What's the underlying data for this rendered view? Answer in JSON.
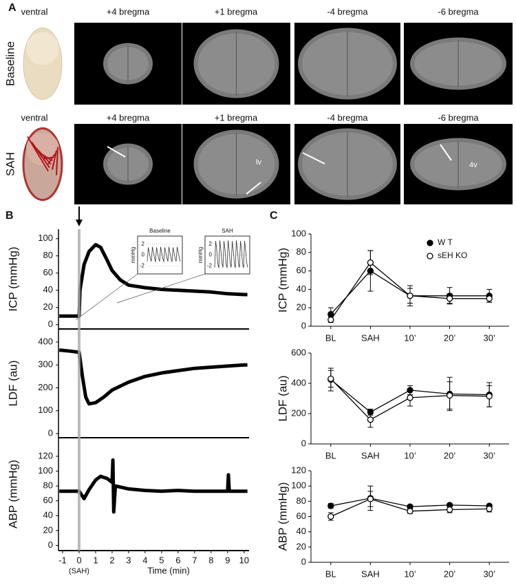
{
  "figure": {
    "panel_a": {
      "label": "A",
      "rows": [
        {
          "label": "Baseline",
          "columns": [
            "ventral",
            "+4 bregma",
            "+1 bregma",
            "-4 bregma",
            "-6 bregma"
          ]
        },
        {
          "label": "SAH",
          "columns": [
            "ventral",
            "+4 bregma",
            "+1 bregma",
            "-4 bregma",
            "-6 bregma"
          ]
        }
      ],
      "annotations": [
        "lv",
        "4v"
      ]
    },
    "panel_b_label": "B",
    "panel_c_label": "C"
  },
  "chart_data": [
    {
      "type": "trace",
      "ylabel": "ICP (mmHg)",
      "color": "#000000",
      "x": [
        -1.2,
        -0.5,
        0,
        0.05,
        0.3,
        0.6,
        1,
        1.3,
        1.7,
        2,
        2.5,
        3,
        4,
        5,
        6,
        7,
        8,
        9,
        10,
        10.2
      ],
      "values": [
        10,
        10,
        10,
        40,
        70,
        85,
        93,
        90,
        75,
        63,
        52,
        46,
        43,
        41,
        40,
        39,
        38,
        36,
        35,
        35
      ],
      "xlim": [
        -1.25,
        10.3
      ],
      "ylim": [
        -5,
        111
      ],
      "yticks": [
        0,
        20,
        40,
        60,
        80,
        100
      ]
    },
    {
      "type": "trace",
      "ylabel": "LDF (au)",
      "color": "#000000",
      "x": [
        -1.2,
        -0.5,
        0,
        0.2,
        0.4,
        0.6,
        1,
        1.5,
        2,
        3,
        4,
        5,
        6,
        7,
        8,
        9,
        10,
        10.2
      ],
      "values": [
        365,
        360,
        355,
        250,
        160,
        130,
        135,
        160,
        190,
        225,
        250,
        265,
        275,
        285,
        290,
        295,
        300,
        300
      ],
      "xlim": [
        -1.25,
        10.3
      ],
      "ylim": [
        -18,
        457
      ],
      "yticks": [
        0,
        100,
        200,
        300,
        400
      ]
    },
    {
      "type": "trace",
      "ylabel": "ABP (mmHg)",
      "color": "#000000",
      "x": [
        -1.2,
        -0.5,
        0,
        0.3,
        0.6,
        1,
        1.3,
        1.7,
        2,
        2.05,
        2.1,
        2.2,
        3,
        4,
        5,
        6,
        7,
        8,
        9,
        9.05,
        9.1,
        10,
        10.2
      ],
      "values": [
        73,
        73,
        73,
        63,
        75,
        88,
        93,
        90,
        85,
        115,
        45,
        80,
        76,
        74,
        73,
        74,
        73,
        73,
        73,
        95,
        73,
        73,
        73
      ],
      "xlim": [
        -1.25,
        10.3
      ],
      "ylim": [
        -7,
        145
      ],
      "yticks": [
        0,
        20,
        40,
        60,
        80,
        100,
        120
      ],
      "xticks": [
        -1,
        0,
        1,
        2,
        3,
        4,
        5,
        6,
        7,
        8,
        9,
        10
      ],
      "xlabel": "Time (min)",
      "x_annotation": "(SAH)"
    },
    {
      "type": "inset",
      "title": "Baseline",
      "ylabel": "mmHg",
      "color": "#333333",
      "ylim": [
        -3.5,
        3.5
      ],
      "yticks": [
        2,
        0,
        -2
      ],
      "values": [
        -1.2,
        1.4,
        0.4,
        -0.6,
        -1.2,
        1.5,
        0.5,
        -0.5,
        -1.3,
        1.4,
        0.4,
        -0.6,
        -1.2,
        1.5,
        0.4,
        -0.6,
        -1.3,
        1.4,
        0.5,
        -0.5,
        -1.2,
        1.5,
        0.4,
        -0.6,
        -1.3,
        1.4,
        0.4,
        -0.6,
        -1.2,
        1.5,
        0.5,
        -0.5,
        -1.2
      ]
    },
    {
      "type": "inset",
      "title": "SAH",
      "ylabel": "mmHg",
      "color": "#333333",
      "ylim": [
        -3.5,
        3.5
      ],
      "yticks": [
        2,
        0,
        -2
      ],
      "values": [
        -2.3,
        2.6,
        1.0,
        -1.5,
        -2.4,
        2.7,
        0.9,
        -1.4,
        -2.3,
        2.6,
        1.0,
        -1.5,
        -2.4,
        2.7,
        1.0,
        -1.5,
        -2.3,
        2.6,
        0.9,
        -1.4,
        -2.4,
        2.7,
        1.0,
        -1.5,
        -2.3,
        2.6,
        1.0,
        -1.5,
        -2.4,
        2.6,
        0.9,
        -1.4,
        -2.3
      ]
    },
    {
      "type": "errorpoints",
      "ylabel": "ICP (mmHg)",
      "categories": [
        "BL",
        "SAH",
        "10’",
        "20’",
        "30’"
      ],
      "ylim": [
        0,
        100
      ],
      "yticks": [
        0,
        20,
        40,
        60,
        80,
        100
      ],
      "legend": "top-right",
      "series": [
        {
          "name": "W T",
          "color": "#000000",
          "values": [
            13,
            60,
            33,
            33,
            33
          ],
          "errors": [
            7,
            22,
            11,
            9,
            7
          ]
        },
        {
          "name": "sEH KO",
          "color": "#ffffff",
          "values": [
            7,
            69,
            33,
            30,
            30
          ],
          "errors": [
            3,
            13,
            8,
            5,
            4
          ]
        }
      ]
    },
    {
      "type": "errorpoints",
      "ylabel": "LDF (au)",
      "categories": [
        "BL",
        "SAH",
        "10’",
        "20’",
        "30’"
      ],
      "ylim": [
        0,
        600
      ],
      "yticks": [
        0,
        200,
        400,
        600
      ],
      "series": [
        {
          "color": "#000000",
          "values": [
            425,
            210,
            355,
            330,
            325
          ],
          "errors": [
            75,
            20,
            30,
            110,
            80
          ]
        },
        {
          "color": "#ffffff",
          "values": [
            430,
            160,
            305,
            320,
            315
          ],
          "errors": [
            55,
            50,
            55,
            90,
            70
          ]
        }
      ]
    },
    {
      "type": "errorpoints",
      "ylabel": "ABP (mmHg)",
      "categories": [
        "BL",
        "SAH",
        "10’",
        "20’",
        "30’"
      ],
      "ylim": [
        0,
        120
      ],
      "yticks": [
        0,
        20,
        40,
        60,
        80,
        100,
        120
      ],
      "series": [
        {
          "color": "#000000",
          "values": [
            74,
            84,
            73,
            75,
            74
          ],
          "errors": [
            3,
            16,
            2,
            2,
            2
          ]
        },
        {
          "color": "#ffffff",
          "values": [
            60,
            83,
            67,
            69,
            70
          ],
          "errors": [
            5,
            10,
            3,
            4,
            4
          ]
        }
      ]
    }
  ]
}
